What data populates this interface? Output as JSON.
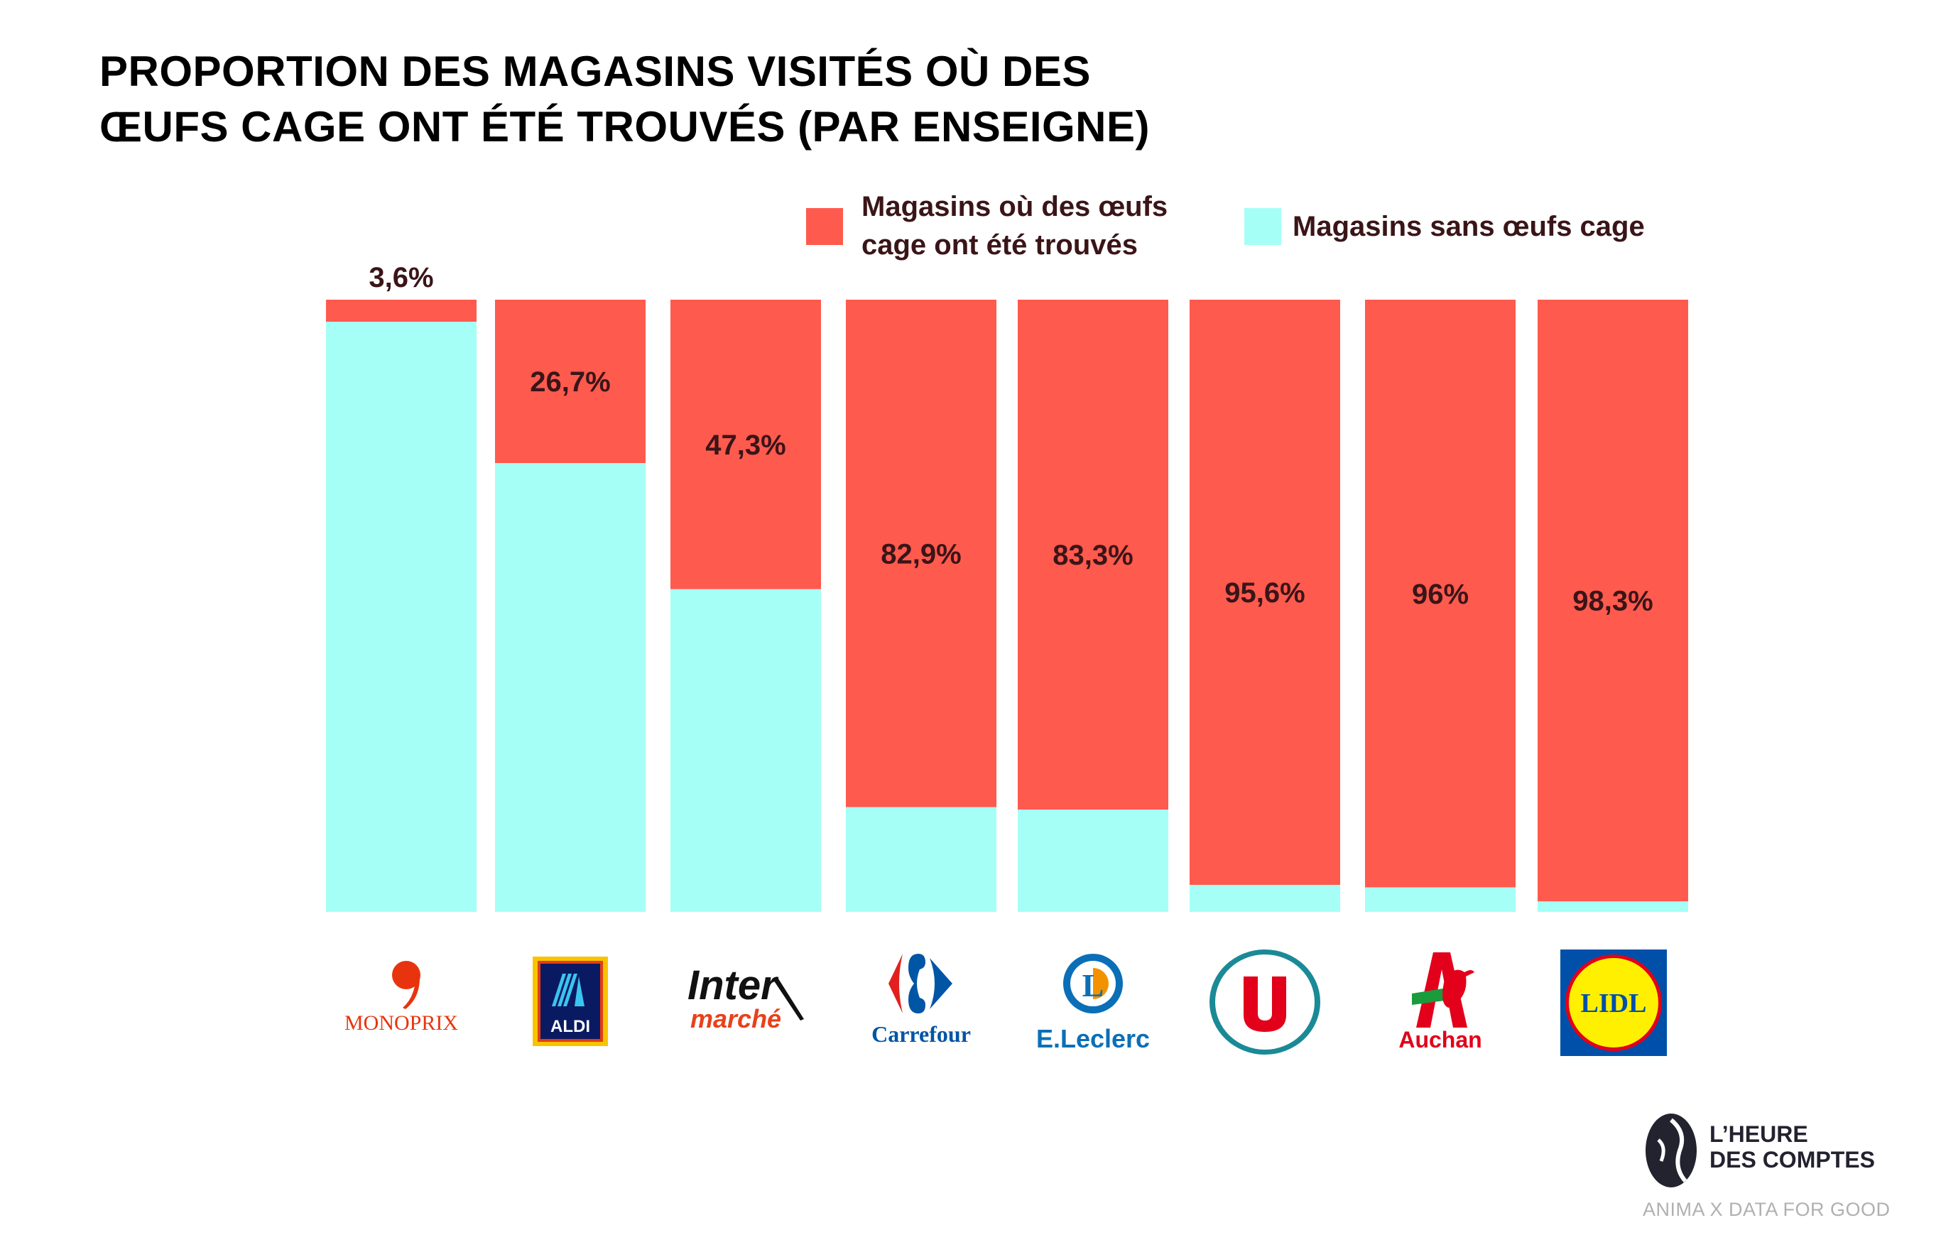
{
  "chart_data": {
    "type": "bar",
    "stacked": true,
    "percent_stacked": true,
    "title": "PROPORTION DES MAGASINS VISITÉS OÙ DES ŒUFS CAGE ONT ÉTÉ TROUVÉS (PAR ENSEIGNE)",
    "title_lines": [
      "PROPORTION DES MAGASINS VISITÉS OÙ DES",
      "ŒUFS CAGE ONT ÉTÉ TROUVÉS (PAR ENSEIGNE)"
    ],
    "categories": [
      "Monoprix",
      "Aldi",
      "Intermarché",
      "Carrefour",
      "E.Leclerc",
      "Super U",
      "Auchan",
      "Lidl"
    ],
    "series": [
      {
        "name": "Magasins où des œufs cage ont été trouvés",
        "legend_lines": [
          "Magasins où des œufs",
          "cage ont été trouvés"
        ],
        "color": "#FF5A4E",
        "values": [
          3.6,
          26.7,
          47.3,
          82.9,
          83.3,
          95.6,
          96,
          98.3
        ]
      },
      {
        "name": "Magasins sans œufs cage",
        "color": "#A5FFF6",
        "values": [
          96.4,
          73.3,
          52.7,
          17.1,
          16.7,
          4.4,
          4,
          1.7
        ]
      }
    ],
    "data_labels": [
      "3,6%",
      "26,7%",
      "47,3%",
      "82,9%",
      "83,3%",
      "95,6%",
      "96%",
      "98,3%"
    ],
    "ylim": [
      0,
      100
    ],
    "grid": false,
    "axes_visible": false,
    "legend_position": "top-right",
    "label_color": "#3A1518"
  },
  "logos": {
    "monoprix": "MONOPRIX",
    "aldi": "ALDI",
    "inter": "Inter",
    "marche": "marché",
    "carrefour": "Carrefour",
    "leclerc": "E.Leclerc",
    "auchan": "Auchan",
    "lidl": "LIDL"
  },
  "footer": {
    "brand_line1": "L’HEURE",
    "brand_line2": "DES COMPTES",
    "credit": "ANIMA X DATA FOR GOOD"
  }
}
